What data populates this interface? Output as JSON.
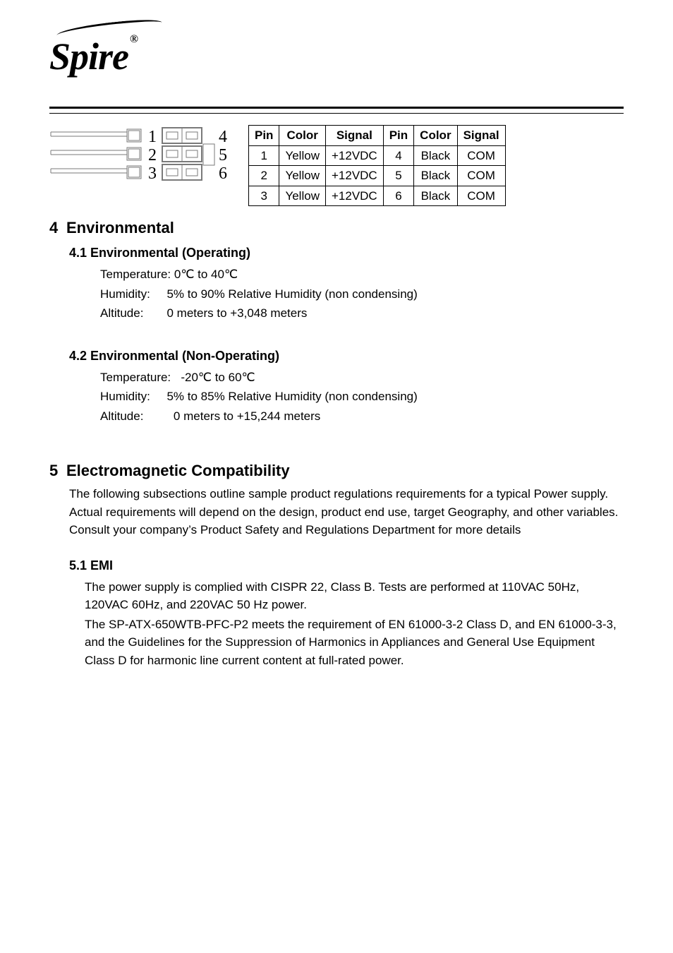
{
  "logo": {
    "text": "Spire",
    "trademark": "®"
  },
  "connector_diagram": {
    "rows": 3,
    "left_labels": [
      "1",
      "2",
      "3"
    ],
    "right_labels": [
      "4",
      "5",
      "6"
    ],
    "stroke": "#7a7a7a",
    "label_font": "Times New Roman",
    "label_fontsize": 24
  },
  "pin_table": {
    "columns": [
      "Pin",
      "Color",
      "Signal",
      "Pin",
      "Color",
      "Signal"
    ],
    "rows": [
      [
        "1",
        "Yellow",
        "+12VDC",
        "4",
        "Black",
        "COM"
      ],
      [
        "2",
        "Yellow",
        "+12VDC",
        "5",
        "Black",
        "COM"
      ],
      [
        "3",
        "Yellow",
        "+12VDC",
        "6",
        "Black",
        "COM"
      ]
    ]
  },
  "sec4": {
    "num": "4",
    "title": "Environmental",
    "s41": {
      "title": "4.1 Environmental (Operating)",
      "lines": [
        "Temperature: 0℃ to 40℃",
        "Humidity:     5% to 90% Relative Humidity (non condensing)",
        "Altitude:       0 meters to +3,048 meters"
      ]
    },
    "s42": {
      "title": "4.2 Environmental (Non-Operating)",
      "lines": [
        "Temperature:   -20℃ to 60℃",
        "Humidity:     5% to 85% Relative Humidity (non condensing)",
        "Altitude:         0 meters to +15,244 meters"
      ]
    }
  },
  "sec5": {
    "num": "5",
    "title": "Electromagnetic Compatibility",
    "intro": "The following subsections outline sample product regulations requirements for a typical Power supply. Actual requirements will depend on the design, product end use, target Geography, and other variables. Consult your company’s Product Safety and Regulations Department for more details",
    "s51": {
      "title": "5.1 EMI",
      "body1": "The power supply is complied with CISPR 22, Class B. Tests are performed at 110VAC 50Hz, 120VAC 60Hz, and 220VAC 50 Hz power.",
      "body2": "The SP-ATX-650WTB-PFC-P2 meets the requirement of EN 61000-3-2 Class D, and EN 61000-3-3, and the Guidelines for the Suppression of Harmonics in Appliances and General Use Equipment Class D for harmonic line current content at full-rated power."
    }
  }
}
